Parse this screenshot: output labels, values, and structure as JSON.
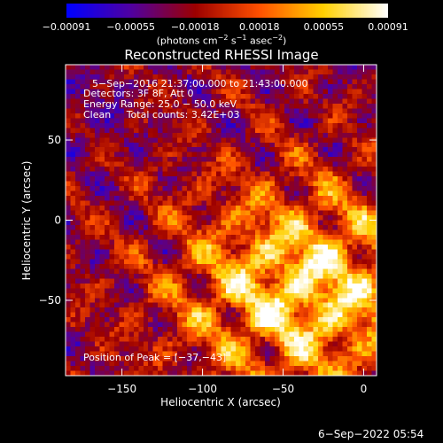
{
  "chart_data": {
    "type": "heatmap",
    "title": "Reconstructed RHESSI Image",
    "xlabel": "Heliocentric X (arcsec)",
    "ylabel": "Heliocentric Y (arcsec)",
    "x_range": [
      -185,
      8
    ],
    "y_range": [
      -97,
      97
    ],
    "x_ticks": [
      {
        "value": -150,
        "label": "−150"
      },
      {
        "value": -100,
        "label": "−100"
      },
      {
        "value": -50,
        "label": "−50"
      },
      {
        "value": 0,
        "label": "0"
      }
    ],
    "y_ticks": [
      {
        "value": 50,
        "label": "50"
      },
      {
        "value": 0,
        "label": "0"
      },
      {
        "value": -50,
        "label": "−50"
      }
    ],
    "colorbar": {
      "range": [
        -0.00091,
        0.00091
      ],
      "tick_labels": [
        "−0.00091",
        "−0.00055",
        "−0.00018",
        "0.00018",
        "0.00055",
        "0.00091"
      ],
      "colors": [
        "#0000ff",
        "#5000a0",
        "#9c0000",
        "#ff5000",
        "#ffd000",
        "#ffffff"
      ]
    },
    "units": {
      "prefix": "(photons cm",
      "exp1": "−2",
      "mid": " s",
      "exp2": "−1",
      "mid2": " asec",
      "exp3": "−2",
      "suffix": ")"
    },
    "annotations": {
      "time": "5−Sep−2016 21:37:00.000 to 21:43:00.000",
      "detectors": "Detectors: 3F 8F, Att 0",
      "energy": "Energy Range: 25.0 − 50.0 keV",
      "algorithm": "Clean     Total counts: 3.42E+03",
      "peak": "Position of Peak = [−37,−43]"
    },
    "peak_position": [
      -37,
      -43
    ],
    "total_counts": 3420,
    "energy_range_keV": [
      25.0,
      50.0
    ]
  },
  "footer": {
    "timestamp": "6−Sep−2022 05:54"
  }
}
